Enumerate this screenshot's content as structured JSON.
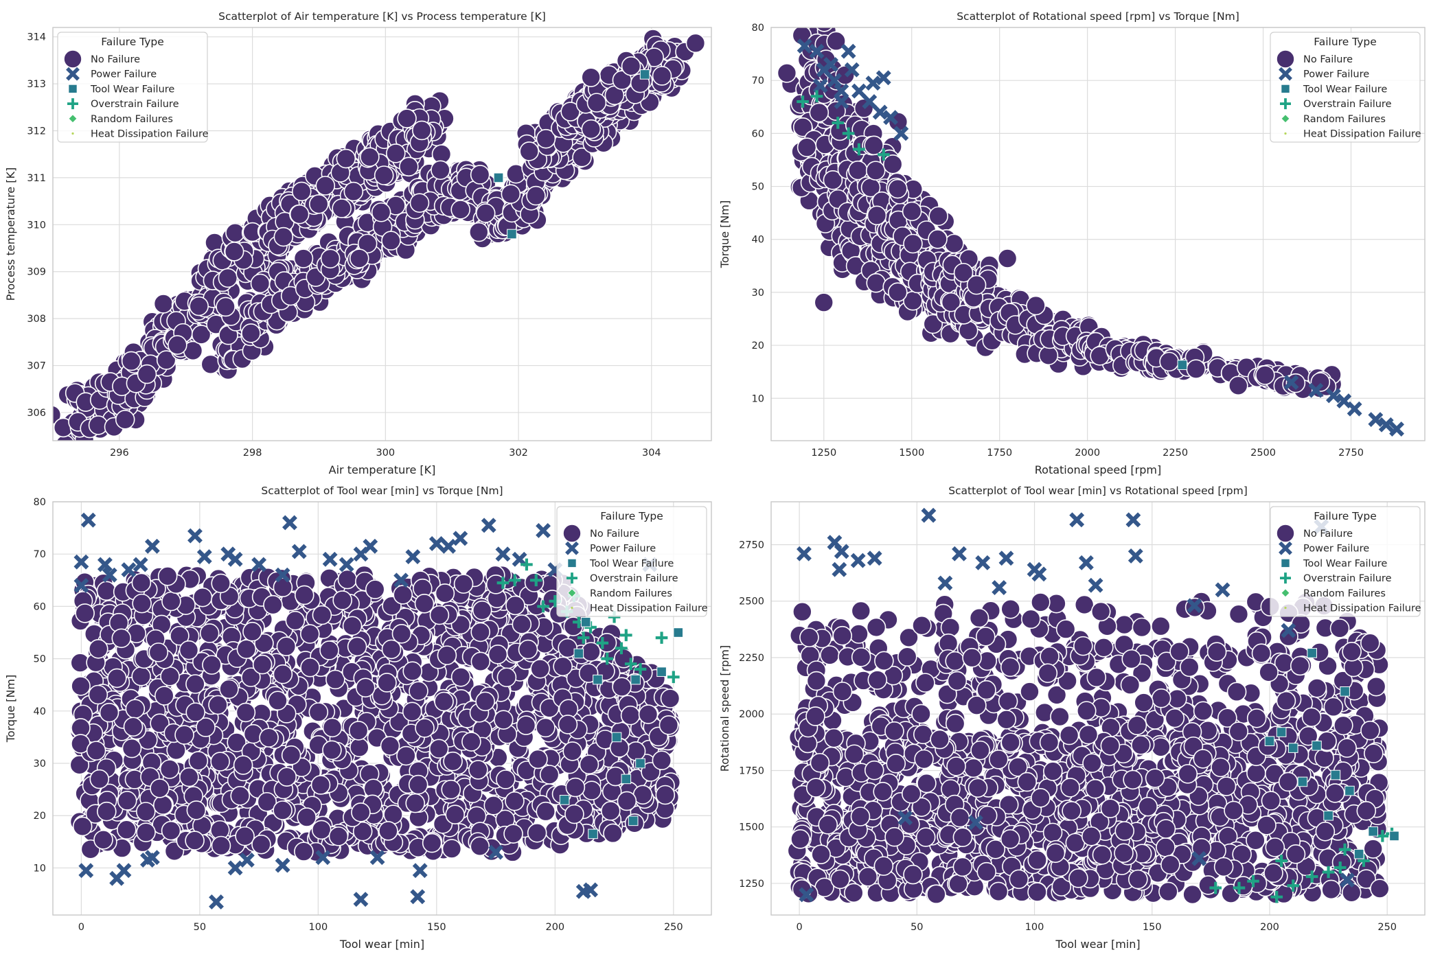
{
  "legend": {
    "title": "Failure Type",
    "entries": [
      {
        "name": "No Failure",
        "marker": "circle",
        "color": "#482f6e"
      },
      {
        "name": "Power Failure",
        "marker": "x",
        "color": "#34578a"
      },
      {
        "name": "Tool Wear Failure",
        "marker": "square",
        "color": "#277b8e"
      },
      {
        "name": "Overstrain Failure",
        "marker": "plus",
        "color": "#1fa385"
      },
      {
        "name": "Random Failures",
        "marker": "diamond",
        "color": "#45bf6f"
      },
      {
        "name": "Heat Dissipation Failure",
        "marker": "point",
        "color": "#b5d65a"
      }
    ]
  },
  "chart_data": [
    {
      "type": "scatter",
      "title": "Scatterplot of Air temperature [K] vs Process temperature [K]",
      "xlabel": "Air temperature [K]",
      "ylabel": "Process temperature [K]",
      "xlim": [
        295.0,
        304.9
      ],
      "ylim": [
        305.4,
        314.2
      ],
      "xticks": [
        296,
        298,
        300,
        302,
        304
      ],
      "yticks": [
        306,
        307,
        308,
        309,
        310,
        311,
        312,
        313,
        314
      ],
      "grid": true,
      "legend_position": "top-left",
      "bands": [
        {
          "name": "No Failure",
          "points": [
            [
              295.3,
              305.8
            ],
            [
              295.8,
              306.2
            ],
            [
              296.3,
              306.8
            ],
            [
              296.8,
              307.6
            ],
            [
              297.3,
              308.5
            ],
            [
              297.8,
              309.3
            ],
            [
              298.3,
              309.8
            ],
            [
              298.8,
              310.4
            ],
            [
              299.3,
              310.8
            ],
            [
              299.8,
              311.2
            ],
            [
              300.3,
              311.7
            ],
            [
              300.8,
              312.2
            ]
          ],
          "width": 1.05
        },
        {
          "name": "No Failure",
          "points": [
            [
              297.6,
              307.3
            ],
            [
              298.0,
              308.0
            ],
            [
              298.5,
              308.6
            ],
            [
              299.0,
              309.0
            ],
            [
              299.5,
              309.3
            ],
            [
              300.0,
              309.8
            ],
            [
              300.5,
              310.3
            ],
            [
              301.0,
              310.7
            ],
            [
              301.5,
              310.7
            ]
          ],
          "width": 0.95
        },
        {
          "name": "No Failure",
          "points": [
            [
              301.5,
              310.0
            ],
            [
              302.0,
              310.5
            ],
            [
              302.5,
              311.3
            ],
            [
              303.0,
              312.0
            ],
            [
              303.5,
              312.7
            ],
            [
              304.0,
              313.3
            ],
            [
              304.4,
              313.6
            ]
          ],
          "width": 0.9
        },
        {
          "name": "No Failure",
          "points": [
            [
              302.3,
              311.6
            ],
            [
              302.8,
              312.2
            ],
            [
              303.3,
              312.8
            ],
            [
              303.8,
              313.3
            ]
          ],
          "width": 0.7
        }
      ],
      "markers": [
        {
          "name": "Tool Wear Failure",
          "points": [
            [
              301.7,
              311.0
            ],
            [
              303.9,
              313.2
            ],
            [
              301.9,
              309.8
            ]
          ]
        }
      ]
    },
    {
      "type": "scatter",
      "title": "Scatterplot of Rotational speed [rpm] vs Torque [Nm]",
      "xlabel": "Rotational speed [rpm]",
      "ylabel": "Torque [Nm]",
      "xlim": [
        1100,
        2960
      ],
      "ylim": [
        2,
        80
      ],
      "xticks": [
        1250,
        1500,
        1750,
        2000,
        2250,
        2500,
        2750
      ],
      "yticks": [
        10,
        20,
        30,
        40,
        50,
        60,
        70,
        80
      ],
      "grid": true,
      "legend_position": "top-right",
      "bands": [
        {
          "name": "No Failure",
          "points": [
            [
              1200,
              64
            ],
            [
              1250,
              60
            ],
            [
              1300,
              55
            ],
            [
              1350,
              50
            ],
            [
              1400,
              46
            ],
            [
              1450,
              42
            ],
            [
              1500,
              38
            ],
            [
              1550,
              35
            ],
            [
              1600,
              32
            ],
            [
              1650,
              30
            ],
            [
              1700,
              28
            ],
            [
              1750,
              26
            ],
            [
              1800,
              24
            ],
            [
              1850,
              23
            ],
            [
              1900,
              22
            ],
            [
              1950,
              21
            ],
            [
              2000,
              20
            ],
            [
              2050,
              19
            ],
            [
              2100,
              18.5
            ],
            [
              2150,
              18
            ],
            [
              2200,
              17.5
            ],
            [
              2250,
              17
            ],
            [
              2300,
              16.5
            ],
            [
              2400,
              15
            ],
            [
              2500,
              14
            ],
            [
              2600,
              13.5
            ],
            [
              2700,
              12.5
            ]
          ],
          "width": 0
        }
      ],
      "markers": [
        {
          "name": "Power Failure",
          "points": [
            [
              1195,
              76.5
            ],
            [
              1230,
              75.5
            ],
            [
              1250,
              72
            ],
            [
              1280,
              70
            ],
            [
              1300,
              68
            ],
            [
              1320,
              75.5
            ],
            [
              1330,
              72
            ],
            [
              1350,
              68
            ],
            [
              1390,
              69.5
            ],
            [
              1410,
              64
            ],
            [
              1440,
              63
            ],
            [
              1470,
              60
            ],
            [
              1270,
              73
            ],
            [
              1300,
              66
            ],
            [
              1380,
              66
            ],
            [
              1240,
              69
            ],
            [
              2580,
              13
            ],
            [
              2650,
              11.5
            ],
            [
              2700,
              10.5
            ],
            [
              2730,
              9.5
            ],
            [
              2760,
              8
            ],
            [
              2820,
              6
            ],
            [
              2850,
              5
            ],
            [
              2880,
              4.2
            ],
            [
              1420,
              70.5
            ]
          ]
        },
        {
          "name": "Overstrain Failure",
          "points": [
            [
              1190,
              66
            ],
            [
              1290,
              62
            ],
            [
              1230,
              67
            ],
            [
              1350,
              57
            ],
            [
              1420,
              56
            ],
            [
              1320,
              60
            ]
          ]
        },
        {
          "name": "Tool Wear Failure",
          "points": [
            [
              2270,
              16.3
            ]
          ]
        }
      ]
    },
    {
      "type": "scatter",
      "title": "Scatterplot of Tool wear [min] vs Torque [Nm]",
      "xlabel": "Tool wear [min]",
      "ylabel": "Torque [Nm]",
      "xlim": [
        -12,
        266
      ],
      "ylim": [
        1,
        80
      ],
      "xticks": [
        0,
        50,
        100,
        150,
        200,
        250
      ],
      "yticks": [
        10,
        20,
        30,
        40,
        50,
        60,
        70,
        80
      ],
      "grid": true,
      "legend_position": "top-right",
      "markers": [
        {
          "name": "Power Failure",
          "points": [
            [
              3,
              76.5
            ],
            [
              0,
              68.5
            ],
            [
              0,
              64
            ],
            [
              10,
              68
            ],
            [
              12,
              66
            ],
            [
              20,
              67
            ],
            [
              25,
              68
            ],
            [
              30,
              71.5
            ],
            [
              48,
              73.5
            ],
            [
              52,
              69.5
            ],
            [
              62,
              70
            ],
            [
              65,
              69
            ],
            [
              75,
              68
            ],
            [
              85,
              66
            ],
            [
              88,
              76
            ],
            [
              92,
              70.5
            ],
            [
              105,
              69
            ],
            [
              112,
              68
            ],
            [
              118,
              70
            ],
            [
              122,
              71.5
            ],
            [
              135,
              65
            ],
            [
              140,
              69.5
            ],
            [
              150,
              72
            ],
            [
              155,
              71.5
            ],
            [
              160,
              73
            ],
            [
              172,
              75.5
            ],
            [
              178,
              70
            ],
            [
              185,
              69
            ],
            [
              195,
              74.5
            ],
            [
              200,
              67
            ],
            [
              2,
              9.5
            ],
            [
              15,
              8
            ],
            [
              18,
              9.5
            ],
            [
              28,
              11.5
            ],
            [
              30,
              12
            ],
            [
              57,
              3.5
            ],
            [
              65,
              10
            ],
            [
              70,
              11.5
            ],
            [
              85,
              10.5
            ],
            [
              102,
              12
            ],
            [
              118,
              4
            ],
            [
              125,
              12
            ],
            [
              142,
              4.5
            ],
            [
              143,
              9.5
            ],
            [
              175,
              13
            ],
            [
              212,
              5.5
            ],
            [
              215,
              5.8
            ],
            [
              240,
              68
            ]
          ]
        },
        {
          "name": "Overstrain Failure",
          "points": [
            [
              178,
              64.5
            ],
            [
              183,
              65
            ],
            [
              188,
              68
            ],
            [
              192,
              65
            ],
            [
              195,
              60
            ],
            [
              200,
              61
            ],
            [
              205,
              59
            ],
            [
              210,
              57
            ],
            [
              212,
              54
            ],
            [
              215,
              56
            ],
            [
              220,
              53
            ],
            [
              222,
              50
            ],
            [
              228,
              52
            ],
            [
              230,
              54.5
            ],
            [
              232,
              49
            ],
            [
              236,
              48
            ],
            [
              245,
              54
            ],
            [
              250,
              46.5
            ],
            [
              225,
              58
            ],
            [
              208,
              62
            ]
          ]
        },
        {
          "name": "Tool Wear Failure",
          "points": [
            [
              210,
              51
            ],
            [
              213,
              57
            ],
            [
              218,
              46
            ],
            [
              226,
              35
            ],
            [
              230,
              27
            ],
            [
              234,
              46
            ],
            [
              236,
              30
            ],
            [
              245,
              47.5
            ],
            [
              252,
              55
            ],
            [
              233,
              19
            ],
            [
              216,
              16.5
            ],
            [
              204,
              23
            ]
          ]
        }
      ]
    },
    {
      "type": "scatter",
      "title": "Scatterplot of Tool wear [min] vs Rotational speed [rpm]",
      "xlabel": "Tool wear [min]",
      "ylabel": "Rotational speed [rpm]",
      "xlim": [
        -12,
        266
      ],
      "ylim": [
        1110,
        2940
      ],
      "xticks": [
        0,
        50,
        100,
        150,
        200,
        250
      ],
      "yticks": [
        1250,
        1500,
        1750,
        2000,
        2250,
        2500,
        2750
      ],
      "grid": true,
      "legend_position": "top-right",
      "markers": [
        {
          "name": "Power Failure",
          "points": [
            [
              2,
              2710
            ],
            [
              15,
              2760
            ],
            [
              18,
              2720
            ],
            [
              17,
              2640
            ],
            [
              25,
              2680
            ],
            [
              32,
              2690
            ],
            [
              55,
              2880
            ],
            [
              62,
              2580
            ],
            [
              68,
              2710
            ],
            [
              78,
              2670
            ],
            [
              85,
              2560
            ],
            [
              88,
              2690
            ],
            [
              100,
              2640
            ],
            [
              102,
              2620
            ],
            [
              118,
              2860
            ],
            [
              122,
              2670
            ],
            [
              126,
              2570
            ],
            [
              142,
              2860
            ],
            [
              143,
              2700
            ],
            [
              168,
              2480
            ],
            [
              180,
              2550
            ],
            [
              208,
              2370
            ],
            [
              222,
              2830
            ],
            [
              3,
              1200
            ],
            [
              45,
              1540
            ],
            [
              75,
              1520
            ],
            [
              170,
              1360
            ],
            [
              233,
              1265
            ]
          ]
        },
        {
          "name": "Overstrain Failure",
          "points": [
            [
              177,
              1230
            ],
            [
              187,
              1230
            ],
            [
              193,
              1260
            ],
            [
              203,
              1190
            ],
            [
              210,
              1240
            ],
            [
              218,
              1280
            ],
            [
              225,
              1300
            ],
            [
              230,
              1320
            ],
            [
              232,
              1400
            ],
            [
              240,
              1350
            ],
            [
              248,
              1460
            ],
            [
              252,
              1470
            ],
            [
              205,
              1350
            ]
          ]
        },
        {
          "name": "Tool Wear Failure",
          "points": [
            [
              200,
              1880
            ],
            [
              205,
              1920
            ],
            [
              210,
              1850
            ],
            [
              214,
              1700
            ],
            [
              218,
              2270
            ],
            [
              220,
              1860
            ],
            [
              225,
              1550
            ],
            [
              228,
              1730
            ],
            [
              232,
              2100
            ],
            [
              234,
              1660
            ],
            [
              238,
              1380
            ],
            [
              244,
              1480
            ],
            [
              253,
              1460
            ]
          ]
        }
      ]
    }
  ]
}
